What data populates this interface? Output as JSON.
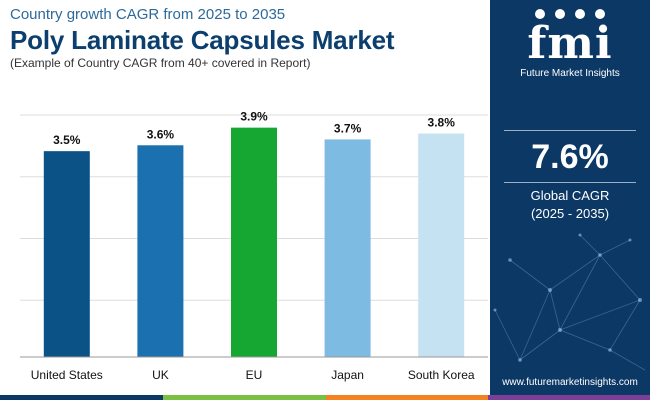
{
  "header": {
    "subtitle": "Country growth CAGR from 2025 to 2035",
    "title": "Poly Laminate Capsules Market",
    "note": "(Example of Country CAGR from 40+ covered in Report)"
  },
  "chart_data": {
    "type": "bar",
    "title": "Poly Laminate Capsules Market",
    "subtitle": "Country growth CAGR from 2025 to 2035",
    "categories": [
      "United States",
      "UK",
      "EU",
      "Japan",
      "South Korea"
    ],
    "values": [
      3.5,
      3.6,
      3.9,
      3.7,
      3.8
    ],
    "value_labels": [
      "3.5%",
      "3.6%",
      "3.9%",
      "3.7%",
      "3.8%"
    ],
    "bar_colors": [
      "#0b5287",
      "#1b70b0",
      "#16a632",
      "#7dbbe3",
      "#c5e2f3"
    ],
    "ylim": [
      0,
      4.2
    ],
    "grid": true,
    "xlabel": "",
    "ylabel": ""
  },
  "sidebar": {
    "logo_mark": "fmi",
    "logo_text": "Future Market Insights",
    "cagr_value": "7.6%",
    "cagr_label": "Global CAGR",
    "cagr_period": "(2025 - 2035)",
    "website": "www.futuremarketinsights.com"
  },
  "colors": {
    "sidebar_bg": "#0c3866",
    "title": "#0c3f6e",
    "subtitle": "#2d6a9a",
    "bottom_bar": [
      "#0c3866",
      "#7ac143",
      "#f58220",
      "#7b3f98"
    ]
  }
}
